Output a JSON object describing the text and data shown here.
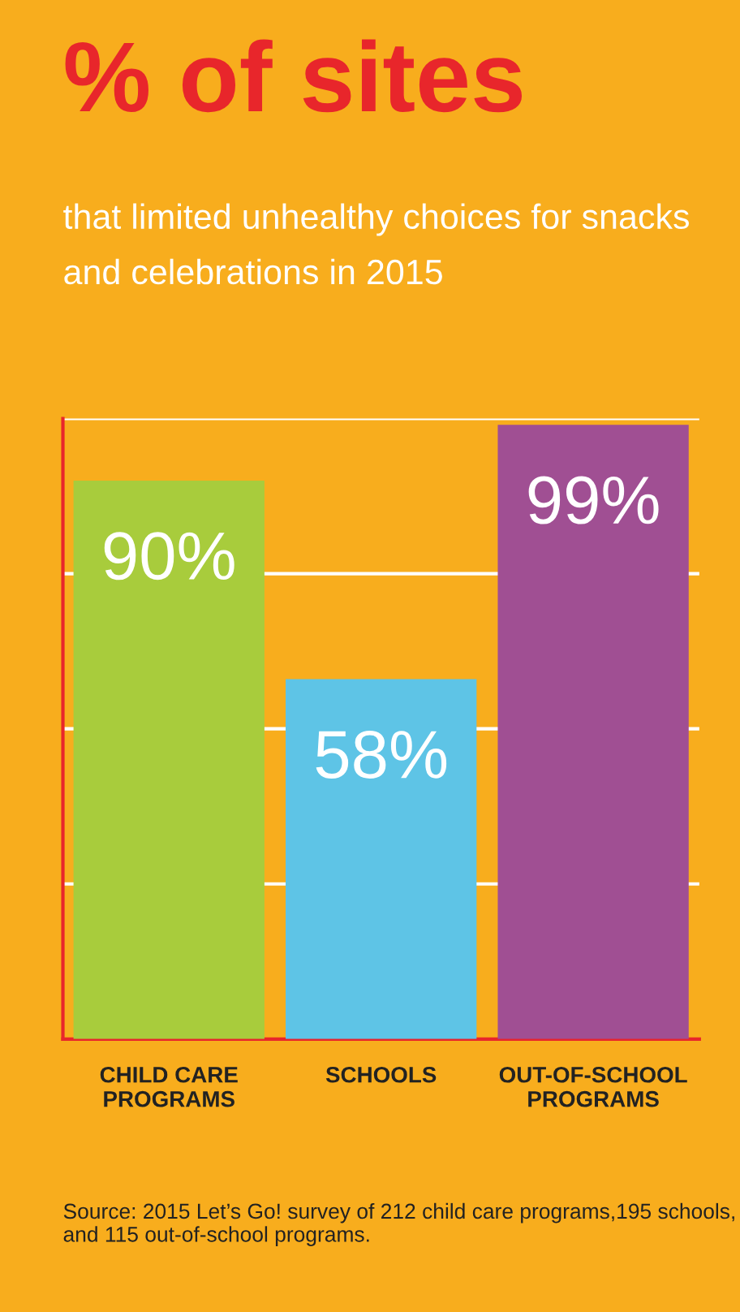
{
  "chart_data": {
    "type": "bar",
    "title": "% of sites",
    "subtitle": "that limited unhealthy choices for snacks and celebrations in 2015",
    "categories": [
      "CHILD CARE\nPROGRAMS",
      "SCHOOLS",
      "OUT-OF-SCHOOL\nPROGRAMS"
    ],
    "values": [
      90,
      58,
      99
    ],
    "colors": [
      "#a8cc3c",
      "#5ec4e6",
      "#a04f93"
    ],
    "value_labels": [
      "90%",
      "58%",
      "99%"
    ],
    "ylim": [
      0,
      100
    ],
    "yticks": [
      {
        "value": 25,
        "label": null
      },
      {
        "value": 50,
        "label": null
      },
      {
        "value": 75,
        "label": null
      },
      {
        "value": 100,
        "label": null
      }
    ],
    "grid": "y",
    "tick_labels": "x",
    "annotations": [
      "Source: 2015 Let’s Go! survey of 212 child care programs,195 schools, and 115 out-of-school programs."
    ]
  }
}
